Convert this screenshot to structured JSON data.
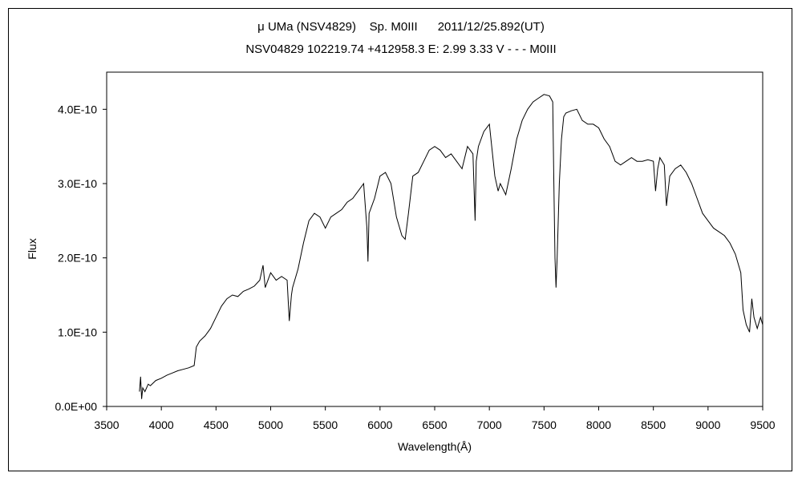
{
  "chart_data": {
    "type": "line",
    "title_line1": "μ UMa (NSV4829)    Sp. M0III      2011/12/25.892(UT)",
    "title_line2": "NSV04829 102219.74 +412958.3 E: 2.99 3.33 V - - - M0III",
    "xlabel": "Wavelength(Å)",
    "ylabel": "Flux",
    "xlim": [
      3500,
      9500
    ],
    "ylim": [
      0,
      4.5e-10
    ],
    "x_ticks": [
      3500,
      4000,
      4500,
      5000,
      5500,
      6000,
      6500,
      7000,
      7500,
      8000,
      8500,
      9000,
      9500
    ],
    "x_tick_labels": [
      "3500",
      "4000",
      "4500",
      "5000",
      "5500",
      "6000",
      "6500",
      "7000",
      "7500",
      "8000",
      "8500",
      "9000",
      "9500"
    ],
    "y_ticks": [
      0,
      1e-10,
      2e-10,
      3e-10,
      4e-10
    ],
    "y_tick_labels": [
      "0.0E+00",
      "1.0E-10",
      "2.0E-10",
      "3.0E-10",
      "4.0E-10"
    ],
    "grid": false,
    "legend": "none",
    "line_color": "#000000",
    "series": [
      {
        "x": [
          3800,
          3810,
          3820,
          3830,
          3850,
          3880,
          3900,
          3950,
          4000,
          4050,
          4100,
          4150,
          4200,
          4250,
          4300,
          4320,
          4350,
          4400,
          4450,
          4500,
          4550,
          4600,
          4650,
          4700,
          4750,
          4800,
          4850,
          4900,
          4930,
          4950,
          5000,
          5050,
          5100,
          5150,
          5170,
          5190,
          5200,
          5250,
          5300,
          5350,
          5400,
          5450,
          5500,
          5550,
          5600,
          5650,
          5700,
          5750,
          5800,
          5850,
          5880,
          5890,
          5900,
          5950,
          6000,
          6050,
          6100,
          6150,
          6200,
          6230,
          6260,
          6300,
          6350,
          6400,
          6450,
          6500,
          6550,
          6600,
          6650,
          6700,
          6750,
          6800,
          6850,
          6870,
          6880,
          6900,
          6950,
          7000,
          7050,
          7080,
          7100,
          7150,
          7200,
          7250,
          7300,
          7350,
          7400,
          7450,
          7500,
          7550,
          7580,
          7590,
          7600,
          7610,
          7620,
          7640,
          7660,
          7680,
          7700,
          7750,
          7800,
          7850,
          7900,
          7950,
          8000,
          8050,
          8100,
          8150,
          8200,
          8250,
          8300,
          8350,
          8400,
          8450,
          8500,
          8520,
          8540,
          8560,
          8600,
          8620,
          8650,
          8700,
          8750,
          8800,
          8850,
          8900,
          8950,
          9000,
          9050,
          9100,
          9150,
          9200,
          9250,
          9300,
          9320,
          9350,
          9380,
          9400,
          9420,
          9450,
          9480,
          9500
        ],
        "values": [
          2e-11,
          4e-11,
          1e-11,
          2.5e-11,
          2e-11,
          3e-11,
          2.8e-11,
          3.5e-11,
          3.8e-11,
          4.2e-11,
          4.5e-11,
          4.8e-11,
          5e-11,
          5.2e-11,
          5.5e-11,
          8e-11,
          8.8e-11,
          9.5e-11,
          1.05e-10,
          1.2e-10,
          1.35e-10,
          1.45e-10,
          1.5e-10,
          1.48e-10,
          1.55e-10,
          1.58e-10,
          1.62e-10,
          1.7e-10,
          1.9e-10,
          1.6e-10,
          1.8e-10,
          1.7e-10,
          1.75e-10,
          1.7e-10,
          1.15e-10,
          1.5e-10,
          1.6e-10,
          1.85e-10,
          2.2e-10,
          2.5e-10,
          2.6e-10,
          2.55e-10,
          2.4e-10,
          2.55e-10,
          2.6e-10,
          2.65e-10,
          2.75e-10,
          2.8e-10,
          2.9e-10,
          3e-10,
          2.4e-10,
          1.95e-10,
          2.6e-10,
          2.8e-10,
          3.1e-10,
          3.15e-10,
          3e-10,
          2.55e-10,
          2.3e-10,
          2.25e-10,
          2.6e-10,
          3.1e-10,
          3.15e-10,
          3.3e-10,
          3.45e-10,
          3.5e-10,
          3.45e-10,
          3.35e-10,
          3.4e-10,
          3.3e-10,
          3.2e-10,
          3.5e-10,
          3.4e-10,
          2.5e-10,
          3.3e-10,
          3.5e-10,
          3.7e-10,
          3.8e-10,
          3.1e-10,
          2.9e-10,
          3e-10,
          2.85e-10,
          3.2e-10,
          3.6e-10,
          3.85e-10,
          4e-10,
          4.1e-10,
          4.15e-10,
          4.2e-10,
          4.18e-10,
          4.1e-10,
          3e-10,
          2e-10,
          1.6e-10,
          2e-10,
          3e-10,
          3.6e-10,
          3.9e-10,
          3.95e-10,
          3.98e-10,
          4e-10,
          3.85e-10,
          3.8e-10,
          3.8e-10,
          3.75e-10,
          3.6e-10,
          3.5e-10,
          3.3e-10,
          3.25e-10,
          3.3e-10,
          3.35e-10,
          3.3e-10,
          3.3e-10,
          3.32e-10,
          3.3e-10,
          2.9e-10,
          3.2e-10,
          3.35e-10,
          3.25e-10,
          2.7e-10,
          3.1e-10,
          3.2e-10,
          3.25e-10,
          3.15e-10,
          3e-10,
          2.8e-10,
          2.6e-10,
          2.5e-10,
          2.4e-10,
          2.35e-10,
          2.3e-10,
          2.2e-10,
          2.05e-10,
          1.8e-10,
          1.3e-10,
          1.1e-10,
          1e-10,
          1.45e-10,
          1.2e-10,
          1.05e-10,
          1.2e-10,
          1.1e-10
        ]
      }
    ]
  }
}
